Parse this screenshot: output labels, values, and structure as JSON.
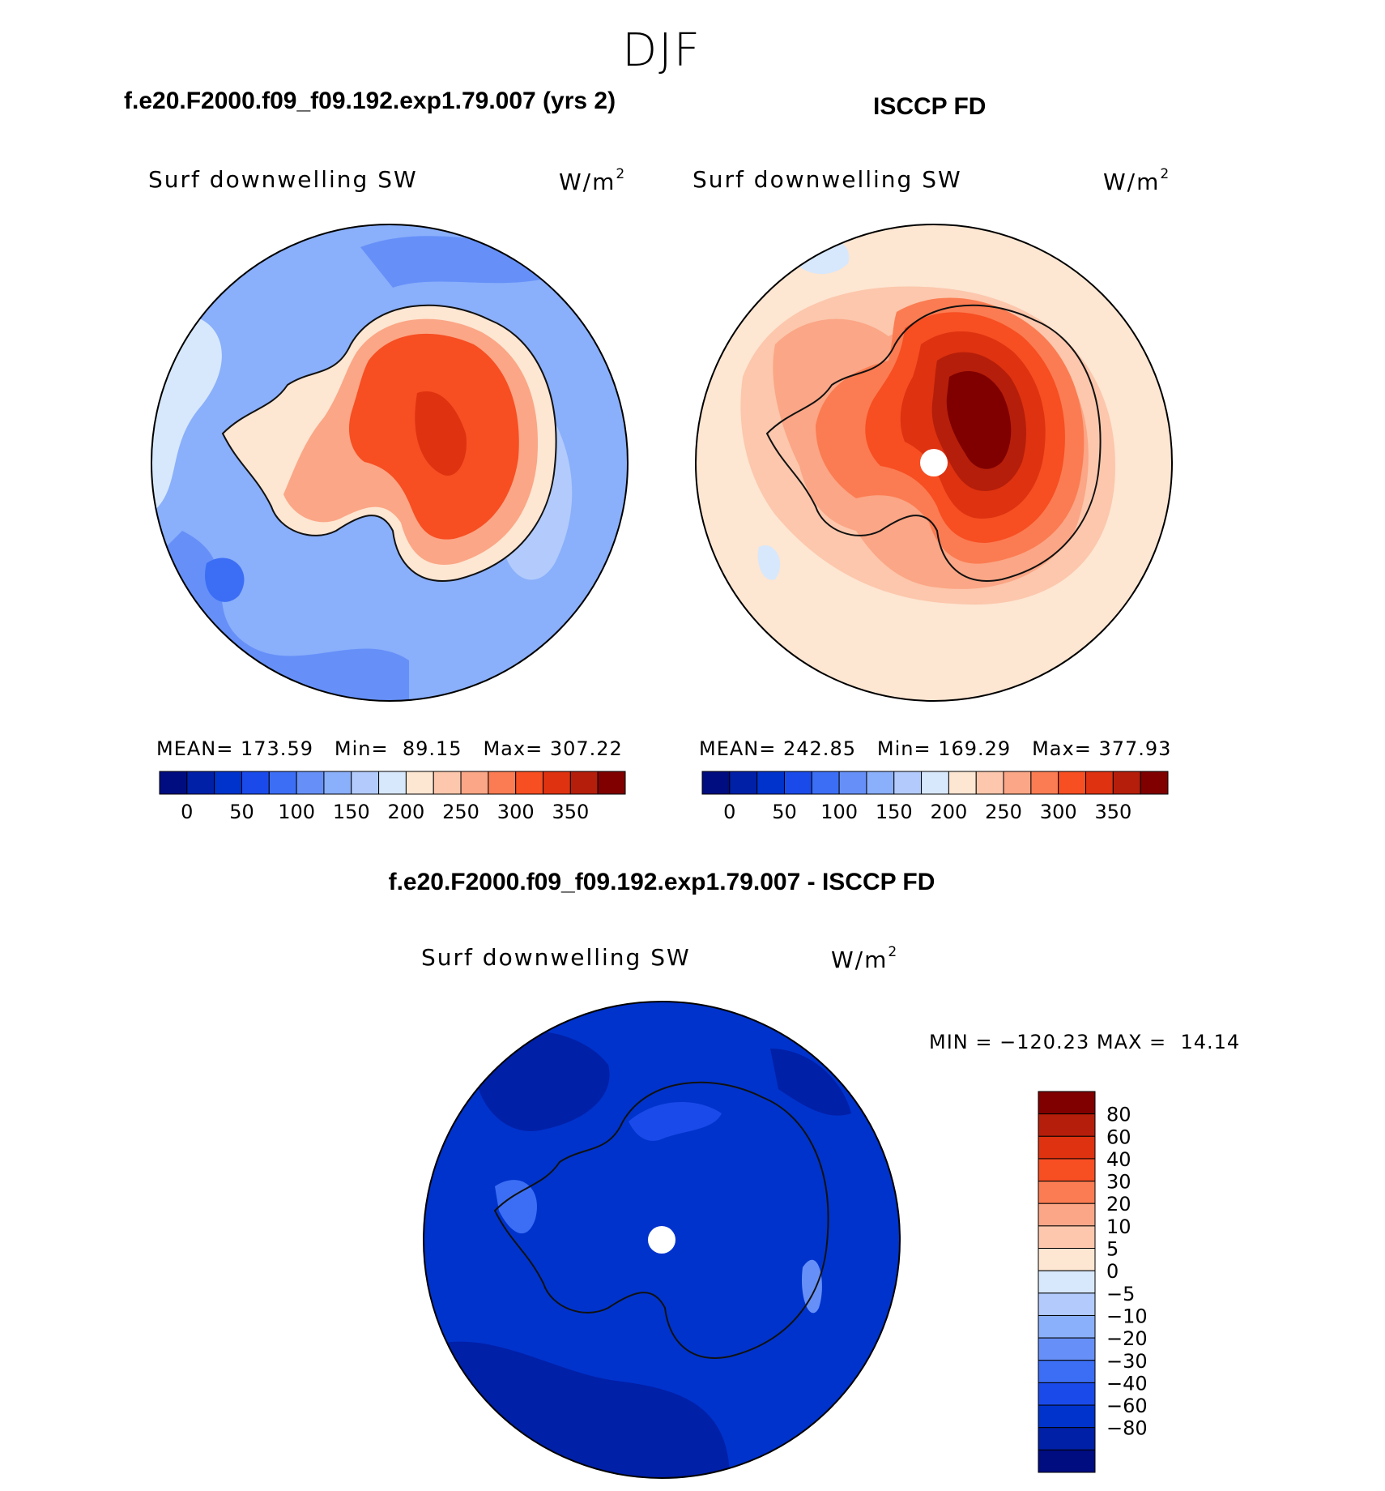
{
  "season": "DJF",
  "colors": {
    "abs_levels": [
      "#000d80",
      "#0020a8",
      "#0033cc",
      "#1a4bea",
      "#3c6ef5",
      "#6690f8",
      "#8aaffb",
      "#b2cbfc",
      "#d7e8fc",
      "#fde6d2",
      "#fcc7ac",
      "#fba686",
      "#fb7c52",
      "#f74e22",
      "#de3210",
      "#b51e0a",
      "#800000"
    ],
    "diff_levels": [
      "#000d80",
      "#0020a8",
      "#0033cc",
      "#1a4bea",
      "#3c6ef5",
      "#6690f8",
      "#8aaffb",
      "#b2cbfc",
      "#d7e8fc",
      "#fde6d2",
      "#fcc7ac",
      "#fba686",
      "#fb7c52",
      "#f74e22",
      "#de3210",
      "#b51e0a",
      "#800000"
    ],
    "coast": "#111111"
  },
  "panels": {
    "model": {
      "title": "f.e20.F2000.f09_f09.192.exp1.79.007 (yrs 2)",
      "var_label": "Surf downwelling SW",
      "units": "W/m",
      "units_sup": "2",
      "mean_label": "MEAN=",
      "mean_value": "173.59",
      "min_label": "Min=",
      "min_value": "89.15",
      "max_label": "Max=",
      "max_value": "307.22"
    },
    "obs": {
      "title": "ISCCP FD",
      "var_label": "Surf downwelling SW",
      "units": "W/m",
      "units_sup": "2",
      "mean_label": "MEAN=",
      "mean_value": "242.85",
      "min_label": "Min=",
      "min_value": "169.29",
      "max_label": "Max=",
      "max_value": "377.93"
    },
    "diff": {
      "title": "f.e20.F2000.f09_f09.192.exp1.79.007 - ISCCP FD",
      "var_label": "Surf downwelling SW",
      "units": "W/m",
      "units_sup": "2",
      "min_label": "MIN =",
      "min_value": "−120.23",
      "max_label": "MAX =",
      "max_value": "14.14"
    }
  },
  "chart_data": [
    {
      "type": "heatmap",
      "projection": "south-polar-stereographic",
      "title": "f.e20.F2000.f09_f09.192.exp1.79.007 (yrs 2)",
      "variable": "Surf downwelling SW",
      "units": "W/m2",
      "mean": 173.59,
      "min": 89.15,
      "max": 307.22,
      "colorbar_ticks": [
        "0",
        "50",
        "100",
        "150",
        "200",
        "250",
        "300",
        "350"
      ],
      "colorbar_ticks_value": [
        0,
        50,
        100,
        150,
        200,
        250,
        300,
        350
      ]
    },
    {
      "type": "heatmap",
      "projection": "south-polar-stereographic",
      "title": "ISCCP FD",
      "variable": "Surf downwelling SW",
      "units": "W/m2",
      "mean": 242.85,
      "min": 169.29,
      "max": 377.93,
      "colorbar_ticks": [
        "0",
        "50",
        "100",
        "150",
        "200",
        "250",
        "300",
        "350"
      ],
      "colorbar_ticks_value": [
        0,
        50,
        100,
        150,
        200,
        250,
        300,
        350
      ]
    },
    {
      "type": "heatmap",
      "projection": "south-polar-stereographic",
      "title": "f.e20.F2000.f09_f09.192.exp1.79.007 - ISCCP FD",
      "variable": "Surf downwelling SW",
      "units": "W/m2",
      "min": -120.23,
      "max": 14.14,
      "colorbar_levels": [
        "80",
        "60",
        "40",
        "30",
        "20",
        "10",
        "5",
        "0",
        "−5",
        "−10",
        "−20",
        "−30",
        "−40",
        "−60",
        "−80"
      ],
      "colorbar_levels_value": [
        80,
        60,
        40,
        30,
        20,
        10,
        5,
        0,
        -5,
        -10,
        -20,
        -30,
        -40,
        -60,
        -80
      ]
    }
  ]
}
